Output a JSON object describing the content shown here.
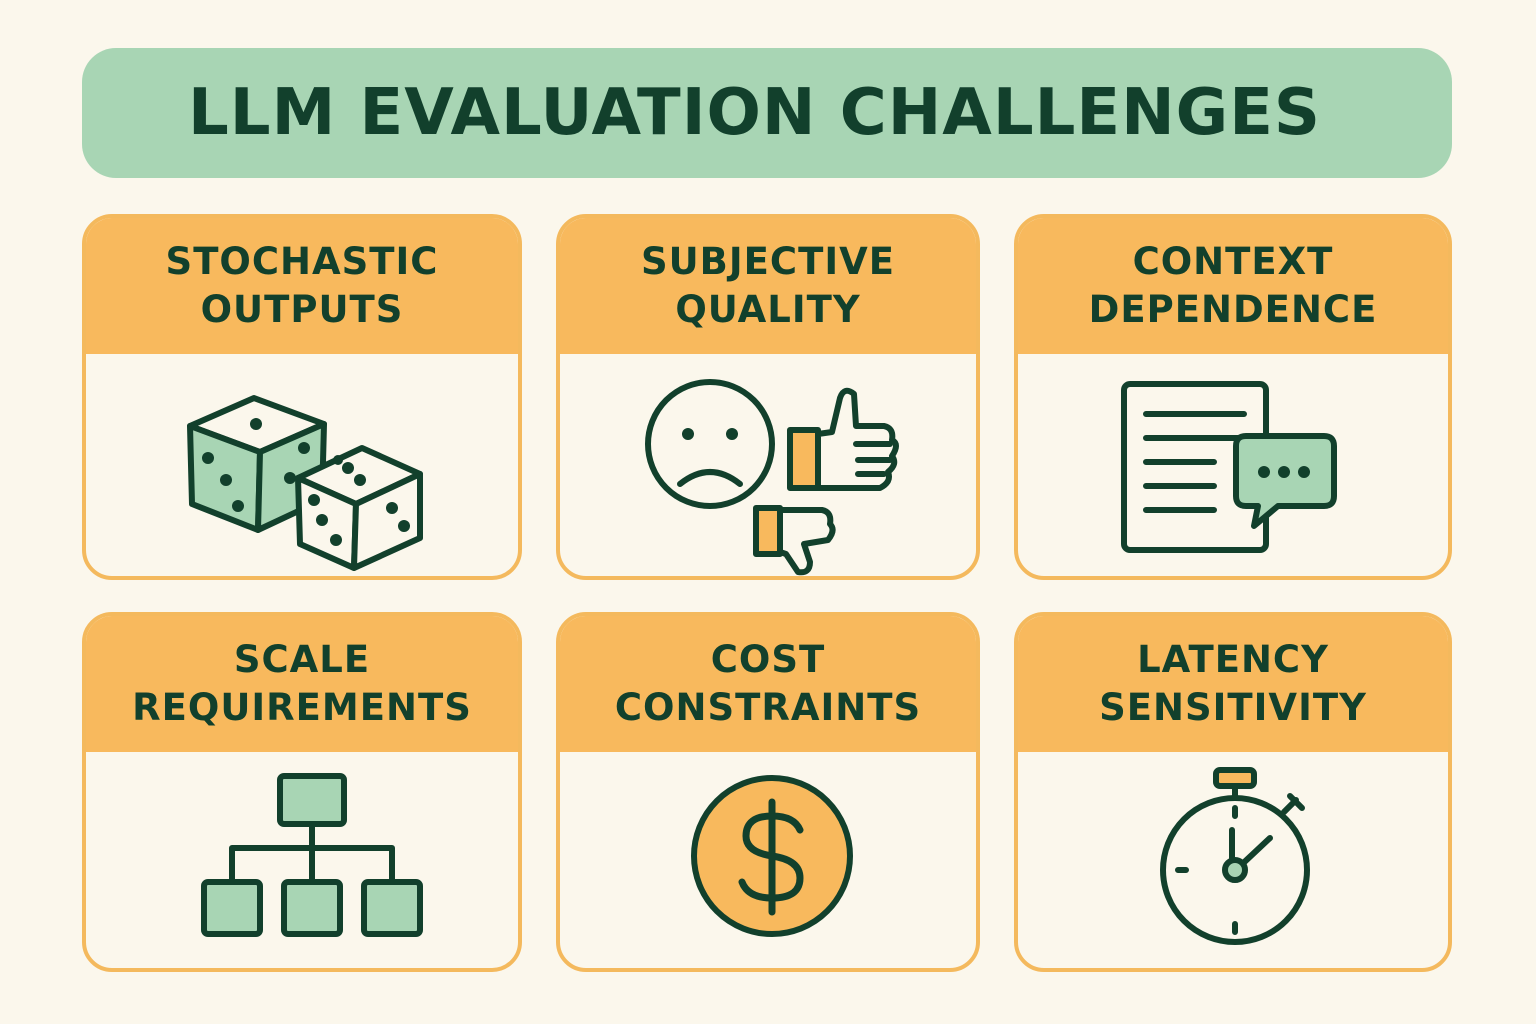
{
  "title": "LLM EVALUATION CHALLENGES",
  "colors": {
    "background": "#fbf7ec",
    "banner": "#a8d5b4",
    "header": "#f8b95d",
    "border": "#f4b95d",
    "ink": "#12402c",
    "green_fill": "#a8d5b4",
    "orange_fill": "#f8b95d"
  },
  "cards": [
    {
      "line1": "STOCHASTIC",
      "line2": "OUTPUTS",
      "icon": "dice-icon"
    },
    {
      "line1": "SUBJECTIVE",
      "line2": "QUALITY",
      "icon": "frown-thumbs-icon"
    },
    {
      "line1": "CONTEXT",
      "line2": "DEPENDENCE",
      "icon": "document-chat-icon"
    },
    {
      "line1": "SCALE",
      "line2": "REQUIREMENTS",
      "icon": "hierarchy-icon"
    },
    {
      "line1": "COST",
      "line2": "CONSTRAINTS",
      "icon": "dollar-coin-icon"
    },
    {
      "line1": "LATENCY",
      "line2": "SENSITIVITY",
      "icon": "stopwatch-icon"
    }
  ]
}
